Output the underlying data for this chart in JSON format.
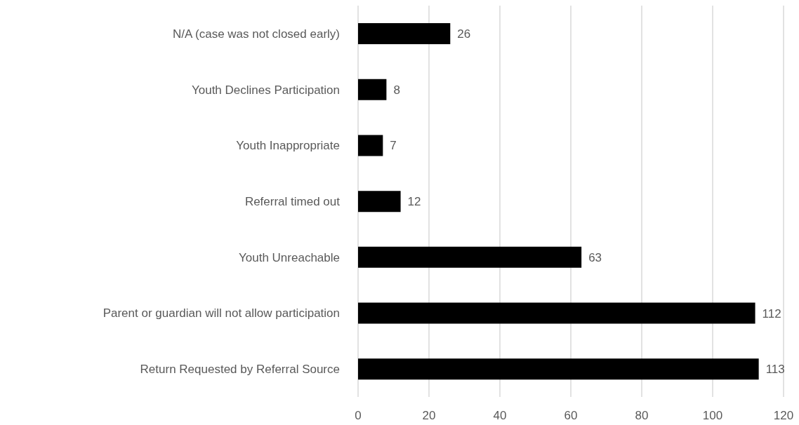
{
  "chart_data": {
    "type": "bar",
    "orientation": "horizontal",
    "categories": [
      "N/A (case was not closed early)",
      "Youth Declines Participation",
      "Youth Inappropriate",
      "Referral timed out",
      "Youth Unreachable",
      "Parent or guardian will not allow participation",
      "Return Requested by Referral Source"
    ],
    "values": [
      26,
      8,
      7,
      12,
      63,
      112,
      113
    ],
    "color": "#000000",
    "xlim": [
      0,
      120
    ],
    "xticks": [
      0,
      20,
      40,
      60,
      80,
      100,
      120
    ],
    "grid": "x",
    "data_labels": true
  }
}
